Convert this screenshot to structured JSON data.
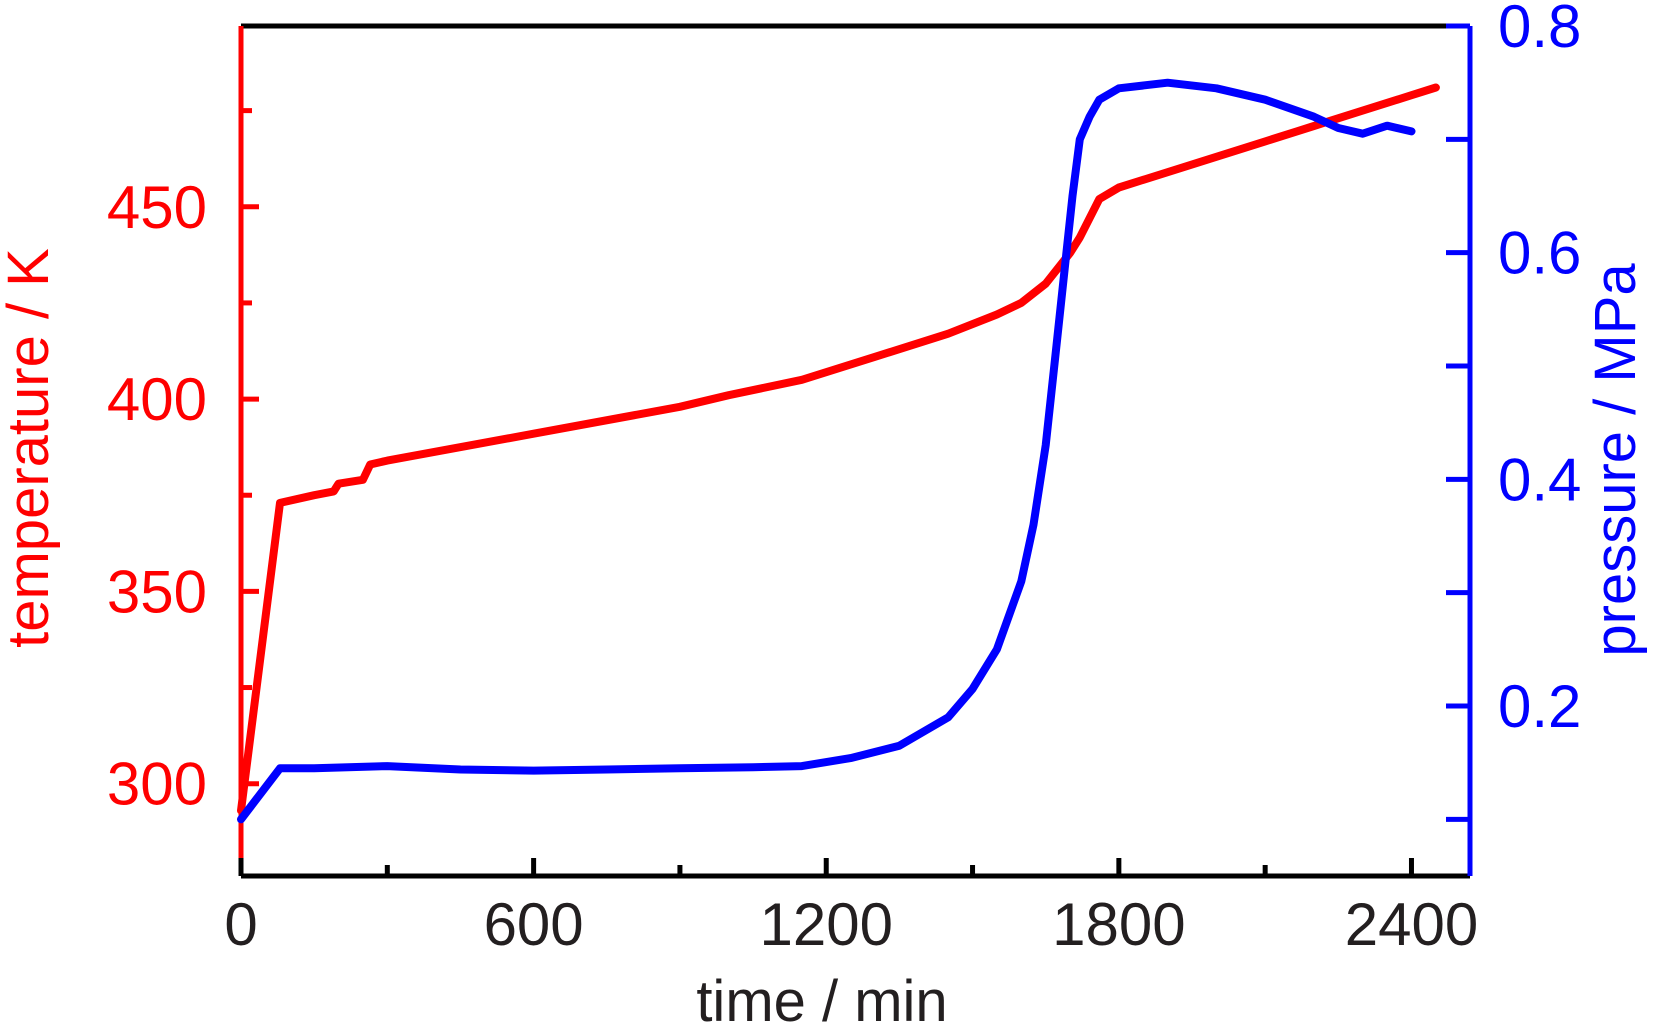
{
  "chart_data": {
    "type": "line",
    "title": "",
    "xlabel": "time / min",
    "ylabel": "temperature / K",
    "y2label": "pressure / MPa",
    "xlim": [
      0,
      2520
    ],
    "ylim": [
      276,
      497
    ],
    "y2lim": [
      0.05,
      0.8
    ],
    "x_ticks": [
      "0",
      "600",
      "1200",
      "1800",
      "2400"
    ],
    "x_tick_values": [
      0,
      600,
      1200,
      1800,
      2400
    ],
    "x_minor_ticks": [
      300,
      900,
      1500,
      2100
    ],
    "y_ticks": [
      "300",
      "350",
      "400",
      "450"
    ],
    "y_tick_values": [
      300,
      350,
      400,
      450
    ],
    "y_minor_ticks": [
      325,
      375,
      425,
      475
    ],
    "y2_ticks": [
      "0.2",
      "0.4",
      "0.6",
      "0.8"
    ],
    "y2_tick_values": [
      0.2,
      0.4,
      0.6,
      0.8
    ],
    "y2_minor_ticks": [
      0.1,
      0.3,
      0.5,
      0.7
    ],
    "colors": {
      "temperature": "#ff0000",
      "pressure": "#0000ff",
      "frame": "#000000",
      "tick_text": "#231f20"
    },
    "series": [
      {
        "axis": "left",
        "color": "#ff0000",
        "x": [
          0,
          80,
          150,
          190,
          200,
          250,
          265,
          300,
          600,
          900,
          1000,
          1150,
          1300,
          1450,
          1550,
          1600,
          1650,
          1700,
          1720,
          1760,
          1800,
          1900,
          2000,
          2100,
          2200,
          2300,
          2400,
          2450
        ],
        "y": [
          293,
          373,
          375,
          376,
          378,
          379,
          383,
          384,
          391,
          398,
          401,
          405,
          411,
          417,
          422,
          425,
          430,
          438,
          442,
          452,
          455,
          459,
          463,
          467,
          471,
          475,
          479,
          481
        ]
      },
      {
        "axis": "right",
        "color": "#0000ff",
        "x": [
          0,
          80,
          150,
          300,
          450,
          600,
          750,
          900,
          1050,
          1150,
          1250,
          1350,
          1450,
          1500,
          1550,
          1600,
          1625,
          1650,
          1670,
          1690,
          1705,
          1720,
          1740,
          1760,
          1800,
          1900,
          2000,
          2100,
          2200,
          2250,
          2300,
          2350,
          2400
        ],
        "y": [
          0.1,
          0.145,
          0.145,
          0.147,
          0.144,
          0.143,
          0.144,
          0.145,
          0.146,
          0.147,
          0.154,
          0.165,
          0.19,
          0.215,
          0.25,
          0.31,
          0.36,
          0.43,
          0.51,
          0.59,
          0.65,
          0.7,
          0.72,
          0.735,
          0.745,
          0.75,
          0.745,
          0.735,
          0.72,
          0.71,
          0.705,
          0.712,
          0.707
        ]
      }
    ]
  }
}
